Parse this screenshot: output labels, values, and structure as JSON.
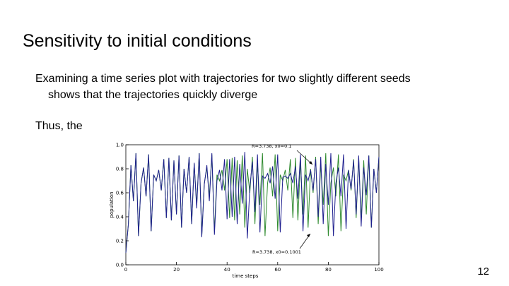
{
  "slide": {
    "title": "Sensitivity to initial conditions",
    "bullet1_line1": "Examining a time series plot with trajectories for two slightly different seeds",
    "bullet1_line2": "shows that the trajectories quickly diverge",
    "bullet2": "Thus, the",
    "page_number": "12"
  },
  "colors": {
    "series_a": "#2f8a2f",
    "series_b": "#1f1f8f",
    "axis": "#000000"
  },
  "chart_data": {
    "type": "line",
    "title": "",
    "xlabel": "time steps",
    "ylabel": "population",
    "xlim": [
      0,
      100
    ],
    "ylim": [
      0.0,
      1.0
    ],
    "xticks": [
      "0",
      "20",
      "40",
      "60",
      "80",
      "100"
    ],
    "yticks": [
      "0.0",
      "0.2",
      "0.4",
      "0.6",
      "0.8",
      "1.0"
    ],
    "annotations": [
      "R=3.738, x0=0.1",
      "R=3.738, x0=0.1001"
    ],
    "grid": false,
    "series": [
      {
        "label": "R=3.738, x0=0.1",
        "values": [
          0.1,
          0.34,
          0.83,
          0.53,
          0.93,
          0.24,
          0.68,
          0.81,
          0.57,
          0.92,
          0.28,
          0.75,
          0.7,
          0.79,
          0.62,
          0.88,
          0.39,
          0.89,
          0.37,
          0.87,
          0.42,
          0.91,
          0.31,
          0.8,
          0.6,
          0.9,
          0.34,
          0.84,
          0.5,
          0.93,
          0.24,
          0.68,
          0.81,
          0.57,
          0.92,
          0.28,
          0.75,
          0.7,
          0.79,
          0.62,
          0.88,
          0.39,
          0.89,
          0.37,
          0.87,
          0.42,
          0.91,
          0.31,
          0.8,
          0.6,
          0.9,
          0.34,
          0.84,
          0.5,
          0.93,
          0.24,
          0.68,
          0.81,
          0.57,
          0.92,
          0.28,
          0.75,
          0.7,
          0.79,
          0.62,
          0.88,
          0.39,
          0.89,
          0.37,
          0.87,
          0.42,
          0.91,
          0.31,
          0.8,
          0.6,
          0.9,
          0.34,
          0.84,
          0.5,
          0.93,
          0.24,
          0.68,
          0.81,
          0.57,
          0.92,
          0.28,
          0.75,
          0.7,
          0.79,
          0.62,
          0.88,
          0.39,
          0.89,
          0.37,
          0.87,
          0.42,
          0.91,
          0.31,
          0.8,
          0.6,
          0.9
        ]
      },
      {
        "label": "R=3.738, x0=0.1001",
        "values": [
          0.1,
          0.34,
          0.83,
          0.53,
          0.93,
          0.24,
          0.68,
          0.81,
          0.57,
          0.92,
          0.28,
          0.75,
          0.7,
          0.79,
          0.62,
          0.88,
          0.39,
          0.89,
          0.37,
          0.87,
          0.42,
          0.91,
          0.31,
          0.8,
          0.6,
          0.9,
          0.34,
          0.85,
          0.47,
          0.93,
          0.23,
          0.67,
          0.83,
          0.53,
          0.93,
          0.25,
          0.7,
          0.79,
          0.62,
          0.88,
          0.38,
          0.88,
          0.4,
          0.9,
          0.34,
          0.84,
          0.51,
          0.94,
          0.22,
          0.64,
          0.86,
          0.44,
          0.92,
          0.27,
          0.74,
          0.72,
          0.76,
          0.68,
          0.82,
          0.55,
          0.92,
          0.27,
          0.73,
          0.74,
          0.72,
          0.76,
          0.68,
          0.82,
          0.55,
          0.92,
          0.28,
          0.75,
          0.7,
          0.79,
          0.62,
          0.88,
          0.4,
          0.9,
          0.34,
          0.84,
          0.5,
          0.93,
          0.24,
          0.68,
          0.81,
          0.57,
          0.92,
          0.3,
          0.79,
          0.63,
          0.87,
          0.42,
          0.91,
          0.32,
          0.81,
          0.58,
          0.91,
          0.31,
          0.8,
          0.6,
          0.9
        ]
      }
    ]
  }
}
